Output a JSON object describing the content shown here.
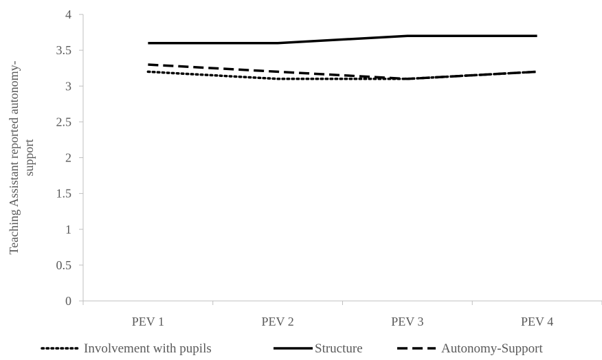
{
  "chart_data": {
    "type": "line",
    "categories": [
      "PEV 1",
      "PEV 2",
      "PEV 3",
      "PEV 4"
    ],
    "series": [
      {
        "name": "Involvement with pupils",
        "values": [
          3.2,
          3.1,
          3.1,
          3.2
        ],
        "style": "dotted",
        "color": "#000000"
      },
      {
        "name": "Structure",
        "values": [
          3.6,
          3.6,
          3.7,
          3.7
        ],
        "style": "solid",
        "color": "#000000"
      },
      {
        "name": "Autonomy-Support",
        "values": [
          3.3,
          3.2,
          3.1,
          3.2
        ],
        "style": "dashed",
        "color": "#000000"
      }
    ],
    "ylabel_lines": [
      "Teaching Assistant reported autonomy-",
      "support"
    ],
    "xlabel": "",
    "ylim": [
      0,
      4
    ],
    "yticks": [
      "0",
      "0.5",
      "1",
      "1.5",
      "2",
      "2.5",
      "3",
      "3.5",
      "4"
    ],
    "grid": false,
    "legend_position": "bottom"
  }
}
